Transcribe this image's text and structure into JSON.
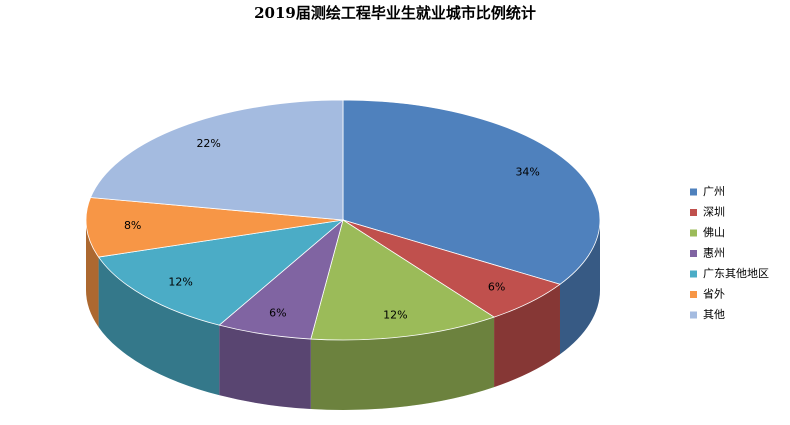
{
  "chart_data": {
    "type": "pie",
    "title": "2019届测绘工程毕业生就业城市比例统计",
    "categories": [
      "广州",
      "深圳",
      "佛山",
      "惠州",
      "广东其他地区",
      "省外",
      "其他"
    ],
    "values": [
      34,
      6,
      12,
      6,
      12,
      8,
      22
    ],
    "value_labels": [
      "34%",
      "6%",
      "12%",
      "6%",
      "12%",
      "8%",
      "22%"
    ],
    "colors": [
      "#4f81bd",
      "#c0504d",
      "#9bbb59",
      "#8064a2",
      "#4bacc6",
      "#f79646",
      "#a4bbe0"
    ],
    "legend": "right"
  }
}
